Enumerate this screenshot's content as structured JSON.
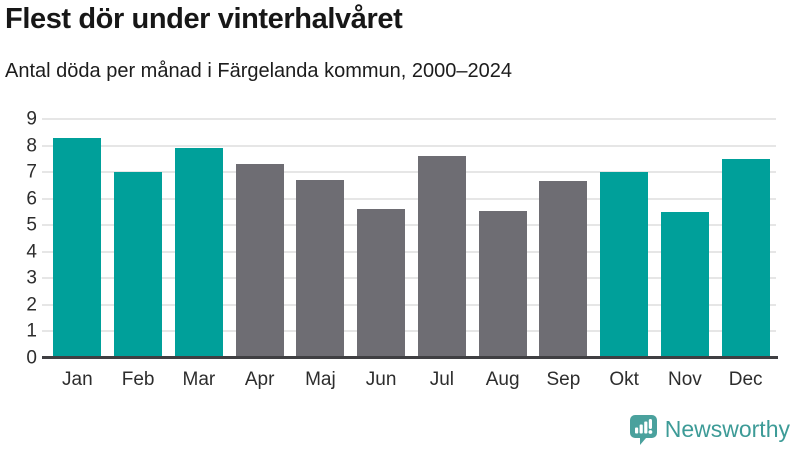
{
  "header": {
    "title": "Flest dör under vinterhalvåret",
    "subtitle": "Antal döda per månad i Färgelanda kommun, 2000–2024"
  },
  "chart_data": {
    "type": "bar",
    "title": "Flest dör under vinterhalvåret",
    "subtitle": "Antal döda per månad i Färgelanda kommun, 2000–2024",
    "categories": [
      "Jan",
      "Feb",
      "Mar",
      "Apr",
      "Maj",
      "Jun",
      "Jul",
      "Aug",
      "Sep",
      "Okt",
      "Nov",
      "Dec"
    ],
    "values": [
      8.3,
      7.0,
      7.9,
      7.3,
      6.7,
      5.6,
      7.6,
      5.55,
      6.65,
      7.0,
      5.5,
      7.5
    ],
    "bar_colors": [
      "winter",
      "winter",
      "winter",
      "summer",
      "summer",
      "summer",
      "summer",
      "summer",
      "summer",
      "winter",
      "winter",
      "winter"
    ],
    "colors": {
      "winter": "#00a09a",
      "summer": "#6e6d73"
    },
    "xlabel": "",
    "ylabel": "",
    "ylim": [
      0,
      9
    ],
    "yticks": [
      0,
      1,
      2,
      3,
      4,
      5,
      6,
      7,
      8,
      9
    ],
    "grid": true,
    "legend": false
  },
  "footer": {
    "brand": "Newsworthy",
    "brand_color": "#3d9b97",
    "logo_color": "#4aa19d",
    "logo_icon": "speech-bubble-bar-chart-icon"
  }
}
